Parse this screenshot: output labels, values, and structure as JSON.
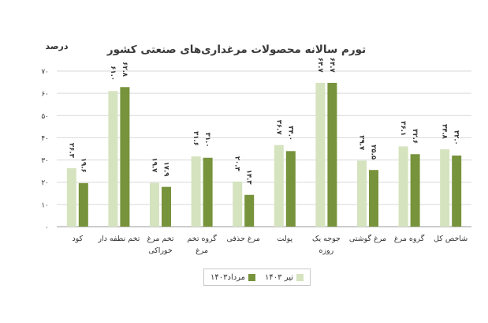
{
  "colors": {
    "series1": "#d6e3bf",
    "series2": "#77933c",
    "axis": "#9a9a9a",
    "grid": "#d9d9d9",
    "text": "#333333",
    "title": "#3a3a3a"
  },
  "chart_data": {
    "type": "bar",
    "title": "تورم سالانه محصولات مرغداری‌های صنعتی کشور",
    "ylabel": "درصد",
    "ylim": [
      0,
      70
    ],
    "yticks": [
      "۰",
      "۱۰",
      "۲۰",
      "۳۰",
      "۴۰",
      "۵۰",
      "۶۰",
      "۷۰"
    ],
    "grid": true,
    "legend_position": "bottom",
    "categories": [
      [
        "شاخص کل"
      ],
      [
        "گروه مرغ"
      ],
      [
        "مرغ گوشتی"
      ],
      [
        "جوجه یک",
        "روزه"
      ],
      [
        "پولت"
      ],
      [
        "مرغ حذفی"
      ],
      [
        "گروه تخم",
        "مرغ"
      ],
      [
        "تخم مرغ",
        "خوراکی"
      ],
      [
        "تخم نطفه دار"
      ],
      [
        "کود"
      ]
    ],
    "series": [
      {
        "name": "تیر ۱۴۰۳",
        "values": [
          34.8,
          36.1,
          29.7,
          64.7,
          36.7,
          20.3,
          31.6,
          19.7,
          61.0,
          26.3
        ],
        "labels": [
          "۳۴.۸",
          "۳۶.۱",
          "۲۹.۷",
          "۶۴.۷",
          "۳۶.۷",
          "۲۰.۳",
          "۳۱.۶",
          "۱۹.۷",
          "۶۱.۰",
          "۲۶.۳"
        ]
      },
      {
        "name": "مرداد۱۴۰۳",
        "values": [
          32.0,
          32.6,
          25.5,
          64.7,
          34.0,
          14.3,
          31.0,
          17.9,
          62.8,
          19.6
        ],
        "labels": [
          "۳۲.۰",
          "۳۲.۶",
          "۲۵.۵",
          "۶۴.۷",
          "۳۴.۰",
          "۱۴.۳",
          "۳۱.۰",
          "۱۷.۹",
          "۶۲.۸",
          "۱۹.۶"
        ]
      }
    ]
  }
}
